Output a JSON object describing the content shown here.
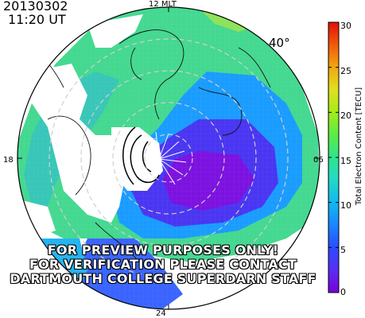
{
  "header": {
    "date": "20130302",
    "time": "11:20 UT",
    "latitude_label": "40°"
  },
  "mlt_labels": {
    "top": "12 MLT",
    "left": "18",
    "right": "06",
    "bottom": "24"
  },
  "watermark": {
    "line1": "FOR PREVIEW PURPOSES ONLY!",
    "line2": "FOR VERIFICATION PLEASE CONTACT",
    "line3": "DARTMOUTH COLLEGE SUPERDARN STAFF"
  },
  "colorbar": {
    "label": "Total Electron Content [TECU]",
    "ticks": [
      "0",
      "5",
      "10",
      "15",
      "20",
      "25",
      "30"
    ],
    "min": 0,
    "max": 30,
    "colors": [
      "#7a00d8",
      "#5a2ef0",
      "#2a4cff",
      "#1a86ff",
      "#12b8f0",
      "#22d8c8",
      "#30e48c",
      "#5aec46",
      "#a4ec1a",
      "#e0e020",
      "#f0a810",
      "#f05a0a",
      "#e01008"
    ]
  }
}
